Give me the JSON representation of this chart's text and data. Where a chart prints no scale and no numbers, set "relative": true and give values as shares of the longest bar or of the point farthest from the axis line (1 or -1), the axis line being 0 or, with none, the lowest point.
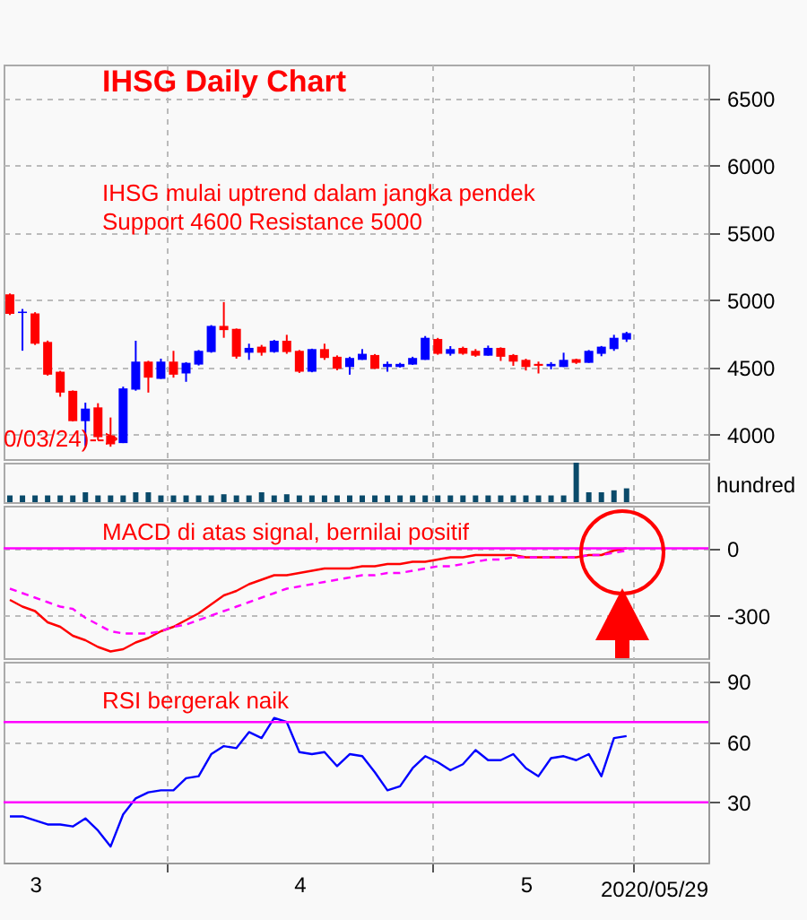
{
  "chart_data": [
    {
      "type": "candlestick",
      "title": "IHSG Daily Chart",
      "annotations": [
        "IHSG mulai uptrend dalam jangka pendek",
        "Support 4600 Resistance 5000",
        "0/03/24)-->"
      ],
      "categories": [
        null,
        null,
        "3",
        null,
        null,
        null,
        null,
        null,
        null,
        null,
        null,
        null,
        null,
        null,
        null,
        null,
        null,
        null,
        null,
        null,
        null,
        null,
        null,
        "4",
        null,
        null,
        null,
        null,
        null,
        null,
        null,
        null,
        null,
        null,
        null,
        null,
        null,
        null,
        null,
        null,
        null,
        "5",
        null,
        null,
        null,
        null,
        null,
        null,
        null,
        null,
        null,
        null,
        null,
        null,
        null,
        null
      ],
      "ohlc": [
        [
          5044,
          5050,
          4890,
          4898
        ],
        [
          4905,
          4935,
          4625,
          4915
        ],
        [
          4902,
          4911,
          4668,
          4677
        ],
        [
          4690,
          4700,
          4440,
          4447
        ],
        [
          4469,
          4475,
          4283,
          4314
        ],
        [
          4327,
          4330,
          4100,
          4102
        ],
        [
          4102,
          4239,
          3917,
          4195
        ],
        [
          4204,
          4235,
          3961,
          3983
        ],
        [
          3996,
          4129,
          3912,
          3930
        ],
        [
          3939,
          4358,
          3939,
          4345
        ],
        [
          4336,
          4699,
          4328,
          4544
        ],
        [
          4544,
          4550,
          4314,
          4425
        ],
        [
          4416,
          4566,
          4416,
          4544
        ],
        [
          4544,
          4624,
          4425,
          4447
        ],
        [
          4456,
          4540,
          4394,
          4535
        ],
        [
          4522,
          4630,
          4515,
          4624
        ],
        [
          4615,
          4815,
          4610,
          4809
        ],
        [
          4809,
          4986,
          4721,
          4778
        ],
        [
          4787,
          4790,
          4566,
          4580
        ],
        [
          4610,
          4677,
          4557,
          4646
        ],
        [
          4655,
          4668,
          4588,
          4610
        ],
        [
          4615,
          4705,
          4610,
          4699
        ],
        [
          4699,
          4743,
          4602,
          4615
        ],
        [
          4624,
          4630,
          4460,
          4469
        ],
        [
          4469,
          4640,
          4465,
          4637
        ],
        [
          4637,
          4677,
          4557,
          4571
        ],
        [
          4580,
          4590,
          4480,
          4491
        ],
        [
          4504,
          4580,
          4447,
          4571
        ],
        [
          4557,
          4637,
          4557,
          4602
        ],
        [
          4593,
          4600,
          4490,
          4491
        ],
        [
          4504,
          4544,
          4469,
          4527
        ],
        [
          4504,
          4535,
          4500,
          4527
        ],
        [
          4522,
          4580,
          4520,
          4571
        ],
        [
          4557,
          4734,
          4557,
          4721
        ],
        [
          4712,
          4720,
          4595,
          4602
        ],
        [
          4602,
          4659,
          4588,
          4637
        ],
        [
          4646,
          4655,
          4595,
          4602
        ],
        [
          4624,
          4637,
          4580,
          4588
        ],
        [
          4588,
          4663,
          4588,
          4646
        ],
        [
          4646,
          4650,
          4549,
          4580
        ],
        [
          4593,
          4600,
          4513,
          4544
        ],
        [
          4557,
          4565,
          4478,
          4504
        ],
        [
          4527,
          4544,
          4456,
          4513
        ],
        [
          4509,
          4540,
          4487,
          4527
        ],
        [
          4504,
          4610,
          4504,
          4557
        ],
        [
          4562,
          4566,
          4527,
          4535
        ],
        [
          4535,
          4630,
          4535,
          4624
        ],
        [
          4602,
          4660,
          4584,
          4655
        ],
        [
          4637,
          4743,
          4624,
          4721
        ],
        [
          4708,
          4765,
          4690,
          4756
        ],
        null,
        null,
        null,
        null,
        null,
        null
      ],
      "colors": [
        "#ff0000",
        "#0000ff",
        "#ff0000",
        "#ff0000",
        "#ff0000",
        "#ff0000",
        "#0000ff",
        "#ff0000",
        "#ff0000",
        "#0000ff",
        "#0000ff",
        "#ff0000",
        "#0000ff",
        "#ff0000",
        "#0000ff",
        "#0000ff",
        "#0000ff",
        "#ff0000",
        "#ff0000",
        "#0000ff",
        "#ff0000",
        "#0000ff",
        "#ff0000",
        "#ff0000",
        "#0000ff",
        "#ff0000",
        "#ff0000",
        "#0000ff",
        "#0000ff",
        "#ff0000",
        "#0000ff",
        "#0000ff",
        "#0000ff",
        "#0000ff",
        "#ff0000",
        "#0000ff",
        "#ff0000",
        "#ff0000",
        "#0000ff",
        "#ff0000",
        "#ff0000",
        "#ff0000",
        "#ff0000",
        "#0000ff",
        "#0000ff",
        "#ff0000",
        "#0000ff",
        "#0000ff",
        "#0000ff",
        "#0000ff",
        null,
        null,
        null,
        null,
        null,
        null
      ],
      "ylim": [
        3820,
        6750
      ],
      "yticks": [
        4000,
        4500,
        5000,
        5500,
        6000,
        6500
      ],
      "grid": true,
      "tick_labels": "y"
    },
    {
      "type": "bar",
      "relative": true,
      "ylabel": "hundred",
      "color": "#0a4a6a",
      "categories": [
        null,
        null,
        "3",
        null,
        null,
        null,
        null,
        null,
        null,
        null,
        null,
        null,
        null,
        null,
        null,
        null,
        null,
        null,
        null,
        null,
        null,
        null,
        null,
        "4",
        null,
        null,
        null,
        null,
        null,
        null,
        null,
        null,
        null,
        null,
        null,
        null,
        null,
        null,
        null,
        null,
        null,
        "5",
        null,
        null,
        null,
        null,
        null,
        null,
        null,
        null,
        null,
        null,
        null,
        null,
        null,
        null
      ],
      "values": [
        0.17,
        0.17,
        0.17,
        0.17,
        0.17,
        0.17,
        0.25,
        0.17,
        0.17,
        0.17,
        0.25,
        0.25,
        0.17,
        0.17,
        0.17,
        0.17,
        0.17,
        0.2,
        0.17,
        0.17,
        0.25,
        0.17,
        0.2,
        0.17,
        0.17,
        0.17,
        0.17,
        0.17,
        0.17,
        0.17,
        0.17,
        0.17,
        0.17,
        0.17,
        0.17,
        0.17,
        0.17,
        0.17,
        0.17,
        0.17,
        0.17,
        0.17,
        0.17,
        0.17,
        0.17,
        1,
        0.25,
        0.25,
        0.3,
        0.35,
        null,
        null,
        null,
        null,
        null,
        null
      ],
      "grid": "x",
      "tick_labels": false
    },
    {
      "type": "line",
      "annotations": [
        "MACD di atas signal, bernilai positif"
      ],
      "categories": [
        null,
        null,
        "3",
        null,
        null,
        null,
        null,
        null,
        null,
        null,
        null,
        null,
        null,
        null,
        null,
        null,
        null,
        null,
        null,
        null,
        null,
        null,
        null,
        "4",
        null,
        null,
        null,
        null,
        null,
        null,
        null,
        null,
        null,
        null,
        null,
        null,
        null,
        null,
        null,
        null,
        null,
        "5",
        null,
        null,
        null,
        null,
        null,
        null,
        null,
        null,
        null,
        null,
        null,
        null,
        null,
        null
      ],
      "series": [
        {
          "color": "#ff0000",
          "line_style": "solid",
          "values": [
            -230,
            -260,
            -280,
            -330,
            -350,
            -390,
            -410,
            -440,
            -460,
            -450,
            -420,
            -400,
            -370,
            -350,
            -320,
            -290,
            -250,
            -210,
            -190,
            -160,
            -140,
            -120,
            -120,
            -110,
            -100,
            -90,
            -90,
            -90,
            -80,
            -80,
            -70,
            -70,
            -60,
            -60,
            -50,
            -40,
            -40,
            -30,
            -30,
            -30,
            -30,
            -40,
            -40,
            -40,
            -40,
            -40,
            -30,
            -30,
            -10,
            0,
            null,
            null,
            null,
            null,
            null,
            null
          ]
        },
        {
          "color": "#ff00ff",
          "line_style": "dashed",
          "values": [
            -180,
            -200,
            -220,
            -240,
            -260,
            -270,
            -310,
            -340,
            -370,
            -380,
            -380,
            -380,
            -370,
            -350,
            -340,
            -320,
            -300,
            -280,
            -260,
            -240,
            -220,
            -200,
            -180,
            -170,
            -160,
            -150,
            -140,
            -130,
            -120,
            -120,
            -110,
            -110,
            -100,
            -90,
            -80,
            -80,
            -70,
            -60,
            -50,
            -50,
            -40,
            -40,
            -40,
            -40,
            -40,
            -40,
            -30,
            -30,
            -20,
            -10,
            null,
            null,
            null,
            null,
            null,
            null
          ]
        }
      ],
      "ylim": [
        -490,
        190
      ],
      "yticks": [
        -300,
        0
      ],
      "ref_lines": [
        {
          "axis": "y",
          "value": 0,
          "color": "#ff00ff"
        }
      ],
      "grid": true,
      "tick_labels": "y"
    },
    {
      "type": "line",
      "annotations": [
        "RSI bergerak naik",
        "2020/05/29"
      ],
      "categories": [
        null,
        null,
        "3",
        null,
        null,
        null,
        null,
        null,
        null,
        null,
        null,
        null,
        null,
        null,
        null,
        null,
        null,
        null,
        null,
        null,
        null,
        null,
        null,
        "4",
        null,
        null,
        null,
        null,
        null,
        null,
        null,
        null,
        null,
        null,
        null,
        null,
        null,
        null,
        null,
        null,
        null,
        "5",
        null,
        null,
        null,
        null,
        null,
        null,
        null,
        null,
        null,
        null,
        null,
        null,
        null,
        null
      ],
      "series": [
        {
          "color": "#0000ff",
          "values": [
            23,
            23,
            21,
            19,
            19,
            18,
            22,
            16,
            8,
            24,
            32,
            35,
            36,
            36,
            42,
            43,
            54,
            58,
            57,
            65,
            62,
            72,
            70,
            55,
            54,
            55,
            48,
            54,
            53,
            45,
            36,
            38,
            47,
            53,
            50,
            46,
            49,
            56,
            51,
            51,
            54,
            47,
            43,
            52,
            53,
            51,
            54,
            43,
            62,
            63,
            null,
            null,
            null,
            null,
            null,
            null
          ]
        }
      ],
      "ylim": [
        0,
        100
      ],
      "yticks": [
        30,
        60,
        90
      ],
      "ref_lines": [
        {
          "axis": "y",
          "value": 70,
          "color": "#ff00ff"
        },
        {
          "axis": "y",
          "value": 30,
          "color": "#ff00ff"
        }
      ],
      "grid": true
    }
  ]
}
